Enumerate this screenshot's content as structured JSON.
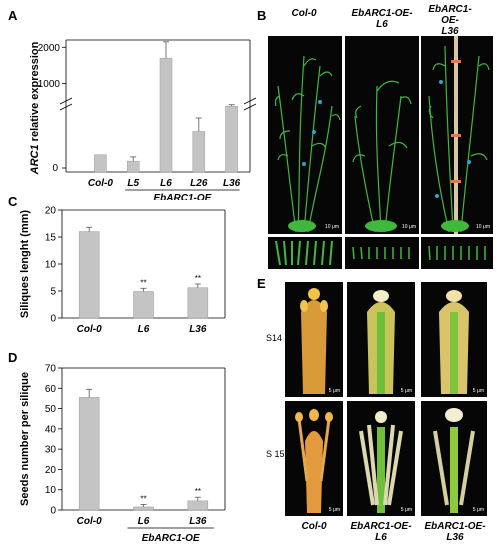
{
  "panels": {
    "A": "A",
    "B": "B",
    "C": "C",
    "D": "D",
    "E": "E"
  },
  "colors": {
    "bar": "#c4c4c4",
    "bar_stroke": "#9a9a9a",
    "plant": "#3fb93c",
    "flower": "#e0a23a",
    "photo_bg": "#060606"
  },
  "chart_data": [
    {
      "id": "A",
      "type": "bar",
      "ylabel_main": "ARC1",
      "ylabel_rest": " relative expression",
      "categories": [
        "Col-0",
        "L5",
        "L6",
        "L26",
        "L36"
      ],
      "values": [
        32,
        20,
        1700,
        75,
        380
      ],
      "errors": [
        0,
        8,
        450,
        25,
        40
      ],
      "axis_break": true,
      "yticks_lower": [
        0
      ],
      "yticks_upper": [
        1000,
        2000
      ],
      "group_label": "EbARC1-OE",
      "group_span": [
        "L5",
        "L36"
      ]
    },
    {
      "id": "C",
      "type": "bar",
      "ylabel": "Siliques lenght (mm)",
      "categories": [
        "Col-0",
        "L6",
        "L36"
      ],
      "values": [
        16.0,
        4.9,
        5.6
      ],
      "errors": [
        0.8,
        0.6,
        0.7
      ],
      "significance": [
        "",
        "**",
        "**"
      ],
      "ylim": [
        0,
        20
      ],
      "yticks": [
        0,
        5,
        10,
        15,
        20
      ]
    },
    {
      "id": "D",
      "type": "bar",
      "ylabel": "Seeds number per silique",
      "categories": [
        "Col-0",
        "L6",
        "L36"
      ],
      "values": [
        55.5,
        1.5,
        4.5
      ],
      "errors": [
        4.0,
        1.2,
        1.8
      ],
      "significance": [
        "",
        "**",
        "**"
      ],
      "ylim": [
        0,
        70
      ],
      "yticks": [
        0,
        10,
        20,
        30,
        40,
        50,
        60,
        70
      ],
      "group_label": "EbARC1-OE",
      "group_span": [
        "L6",
        "L36"
      ]
    }
  ],
  "panelB": {
    "headers": [
      {
        "line1": "Col-0",
        "line2": ""
      },
      {
        "line1": "EbARC1-OE-",
        "line2": "L6"
      },
      {
        "line1": "EbARC1-OE-",
        "line2": "L36"
      }
    ],
    "scalebar": "10 μm"
  },
  "panelE": {
    "rows": [
      "S14",
      "S 15"
    ],
    "footers": [
      {
        "line1": "Col-0",
        "line2": ""
      },
      {
        "line1": "EbARC1-OE-",
        "line2": "L6"
      },
      {
        "line1": "EbARC1-OE-",
        "line2": "L36"
      }
    ],
    "scalebar": "5 μm"
  }
}
